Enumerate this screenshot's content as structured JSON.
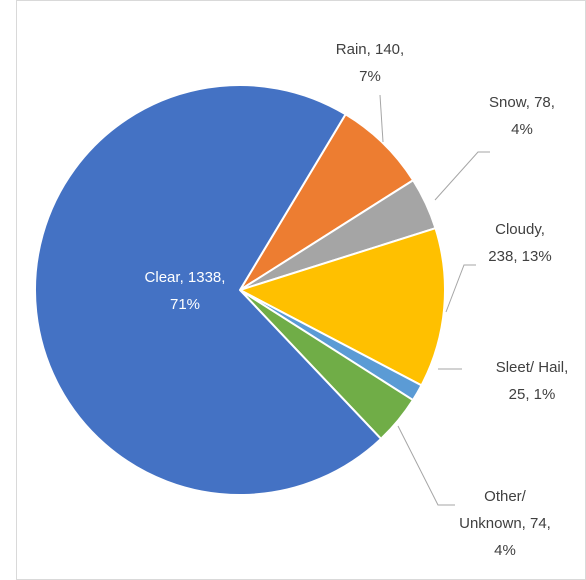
{
  "chart_data": {
    "type": "pie",
    "categories": [
      "Rain",
      "Snow",
      "Cloudy",
      "Sleet/ Hail",
      "Other/ Unknown",
      "Clear"
    ],
    "values": [
      140,
      78,
      238,
      25,
      74,
      1338
    ],
    "value_labels": [
      [
        "Rain, 140,",
        "7%"
      ],
      [
        "Snow, 78,",
        "4%"
      ],
      [
        "Cloudy,",
        "238, 13%"
      ],
      [
        "Sleet/ Hail,",
        "25, 1%"
      ],
      [
        "Other/",
        "Unknown, 74,",
        "4%"
      ],
      [
        "Clear, 1338,",
        "71%"
      ]
    ],
    "colors": [
      "#ed7d31",
      "#a5a5a5",
      "#ffc000",
      "#5b9bd5",
      "#70ad47",
      "#4472c4"
    ]
  }
}
